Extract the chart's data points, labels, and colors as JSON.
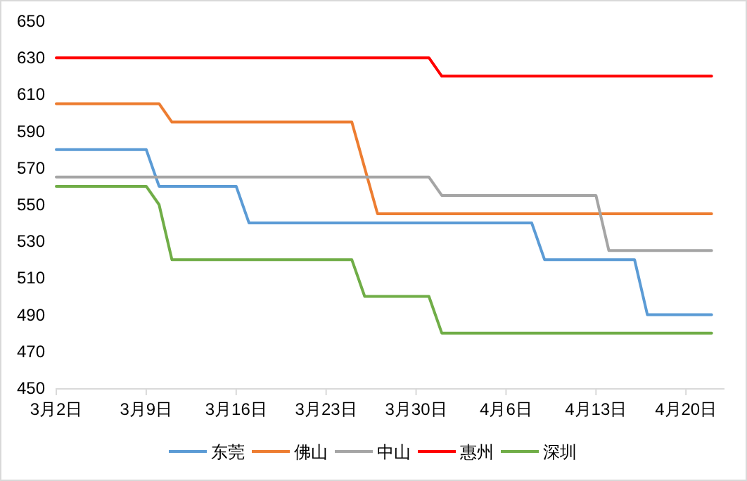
{
  "chart_data": {
    "type": "line",
    "x": [
      "--03-02",
      "--03-03",
      "--03-04",
      "--03-05",
      "--03-06",
      "--03-07",
      "--03-08",
      "--03-09",
      "--03-10",
      "--03-11",
      "--03-12",
      "--03-13",
      "--03-14",
      "--03-15",
      "--03-16",
      "--03-17",
      "--03-18",
      "--03-19",
      "--03-20",
      "--03-21",
      "--03-22",
      "--03-23",
      "--03-24",
      "--03-25",
      "--03-26",
      "--03-27",
      "--03-28",
      "--03-29",
      "--03-30",
      "--03-31",
      "--04-01",
      "--04-02",
      "--04-03",
      "--04-04",
      "--04-05",
      "--04-06",
      "--04-07",
      "--04-08",
      "--04-09",
      "--04-10",
      "--04-11",
      "--04-12",
      "--04-13",
      "--04-14",
      "--04-15",
      "--04-16",
      "--04-17",
      "--04-18",
      "--04-19",
      "--04-20",
      "--04-21",
      "--04-22"
    ],
    "series": [
      {
        "name": "东莞",
        "color": "#5b9bd5",
        "values": [
          580,
          580,
          580,
          580,
          580,
          580,
          580,
          580,
          560,
          560,
          560,
          560,
          560,
          560,
          560,
          540,
          540,
          540,
          540,
          540,
          540,
          540,
          540,
          540,
          540,
          540,
          540,
          540,
          540,
          540,
          540,
          540,
          540,
          540,
          540,
          540,
          540,
          540,
          520,
          520,
          520,
          520,
          520,
          520,
          520,
          520,
          490,
          490,
          490,
          490,
          490,
          490
        ]
      },
      {
        "name": "佛山",
        "color": "#ed7d31",
        "values": [
          605,
          605,
          605,
          605,
          605,
          605,
          605,
          605,
          605,
          595,
          595,
          595,
          595,
          595,
          595,
          595,
          595,
          595,
          595,
          595,
          595,
          595,
          595,
          595,
          570,
          545,
          545,
          545,
          545,
          545,
          545,
          545,
          545,
          545,
          545,
          545,
          545,
          545,
          545,
          545,
          545,
          545,
          545,
          545,
          545,
          545,
          545,
          545,
          545,
          545,
          545,
          545
        ]
      },
      {
        "name": "中山",
        "color": "#a5a5a5",
        "values": [
          565,
          565,
          565,
          565,
          565,
          565,
          565,
          565,
          565,
          565,
          565,
          565,
          565,
          565,
          565,
          565,
          565,
          565,
          565,
          565,
          565,
          565,
          565,
          565,
          565,
          565,
          565,
          565,
          565,
          565,
          555,
          555,
          555,
          555,
          555,
          555,
          555,
          555,
          555,
          555,
          555,
          555,
          555,
          525,
          525,
          525,
          525,
          525,
          525,
          525,
          525,
          525
        ]
      },
      {
        "name": "惠州",
        "color": "#ff0000",
        "values": [
          630,
          630,
          630,
          630,
          630,
          630,
          630,
          630,
          630,
          630,
          630,
          630,
          630,
          630,
          630,
          630,
          630,
          630,
          630,
          630,
          630,
          630,
          630,
          630,
          630,
          630,
          630,
          630,
          630,
          630,
          620,
          620,
          620,
          620,
          620,
          620,
          620,
          620,
          620,
          620,
          620,
          620,
          620,
          620,
          620,
          620,
          620,
          620,
          620,
          620,
          620,
          620
        ]
      },
      {
        "name": "深圳",
        "color": "#70ad47",
        "values": [
          560,
          560,
          560,
          560,
          560,
          560,
          560,
          560,
          550,
          520,
          520,
          520,
          520,
          520,
          520,
          520,
          520,
          520,
          520,
          520,
          520,
          520,
          520,
          520,
          500,
          500,
          500,
          500,
          500,
          500,
          480,
          480,
          480,
          480,
          480,
          480,
          480,
          480,
          480,
          480,
          480,
          480,
          480,
          480,
          480,
          480,
          480,
          480,
          480,
          480,
          480,
          480
        ]
      }
    ],
    "xlim": [
      "--03-02",
      "--04-23"
    ],
    "xticks": [
      {
        "value": "--03-02",
        "label": "3月2日"
      },
      {
        "value": "--03-09",
        "label": "3月9日"
      },
      {
        "value": "--03-16",
        "label": "3月16日"
      },
      {
        "value": "--03-23",
        "label": "3月23日"
      },
      {
        "value": "--03-30",
        "label": "3月30日"
      },
      {
        "value": "--04-06",
        "label": "4月6日"
      },
      {
        "value": "--04-13",
        "label": "4月13日"
      },
      {
        "value": "--04-20",
        "label": "4月20日"
      }
    ],
    "ylim": [
      450,
      650
    ],
    "yticks": [
      450,
      470,
      490,
      510,
      530,
      550,
      570,
      590,
      610,
      630,
      650
    ],
    "legend": "bottom"
  }
}
